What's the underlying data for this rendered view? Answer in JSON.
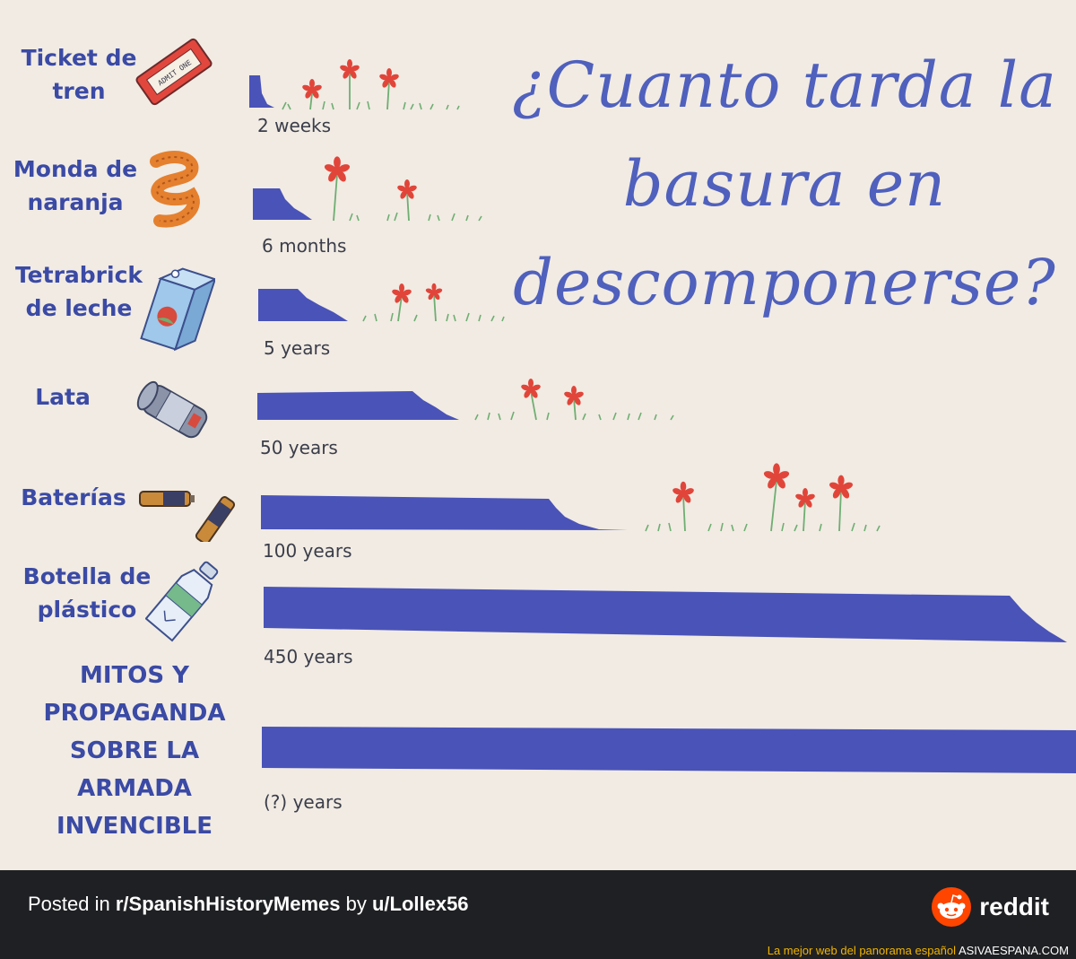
{
  "title_lines": [
    "¿Cuanto tarda la",
    "basura en",
    "descomponerse?"
  ],
  "items": [
    {
      "label_lines": [
        "Ticket de",
        "tren"
      ],
      "duration": "2 weeks",
      "icon": "train-ticket-icon"
    },
    {
      "label_lines": [
        "Monda de",
        "naranja"
      ],
      "duration": "6 months",
      "icon": "orange-peel-icon"
    },
    {
      "label_lines": [
        "Tetrabrick",
        "de leche"
      ],
      "duration": "5 years",
      "icon": "milk-carton-icon"
    },
    {
      "label_lines": [
        "Lata"
      ],
      "duration": "50 years",
      "icon": "can-icon"
    },
    {
      "label_lines": [
        "Baterías"
      ],
      "duration": "100 years",
      "icon": "batteries-icon"
    },
    {
      "label_lines": [
        "Botella de",
        "plástico"
      ],
      "duration": "450 years",
      "icon": "plastic-bottle-icon"
    },
    {
      "label_lines": [
        "MITOS Y",
        "PROPAGANDA",
        "SOBRE LA",
        "ARMADA",
        "INVENCIBLE"
      ],
      "duration": "(?) years",
      "icon": ""
    }
  ],
  "ticket_text": "ADMIT ONE",
  "footer": {
    "posted_prefix": "Posted in ",
    "subreddit": "r/SpanishHistoryMemes",
    "by_text": " by ",
    "user": "u/Lollex56",
    "brand": "reddit",
    "brand_icon": "reddit-alien-icon"
  },
  "credit": {
    "tagline": "La mejor web del panorama español",
    "site": "ASIVAESPANA.COM"
  },
  "colors": {
    "background": "#f1ebe3",
    "bar": "#4a53b8",
    "title": "#4f60bd",
    "label": "#3a4aa5",
    "flower": "#e1453a",
    "grass": "#6fae72",
    "footer": "#1f2023",
    "reddit_orange": "#ff4500"
  }
}
